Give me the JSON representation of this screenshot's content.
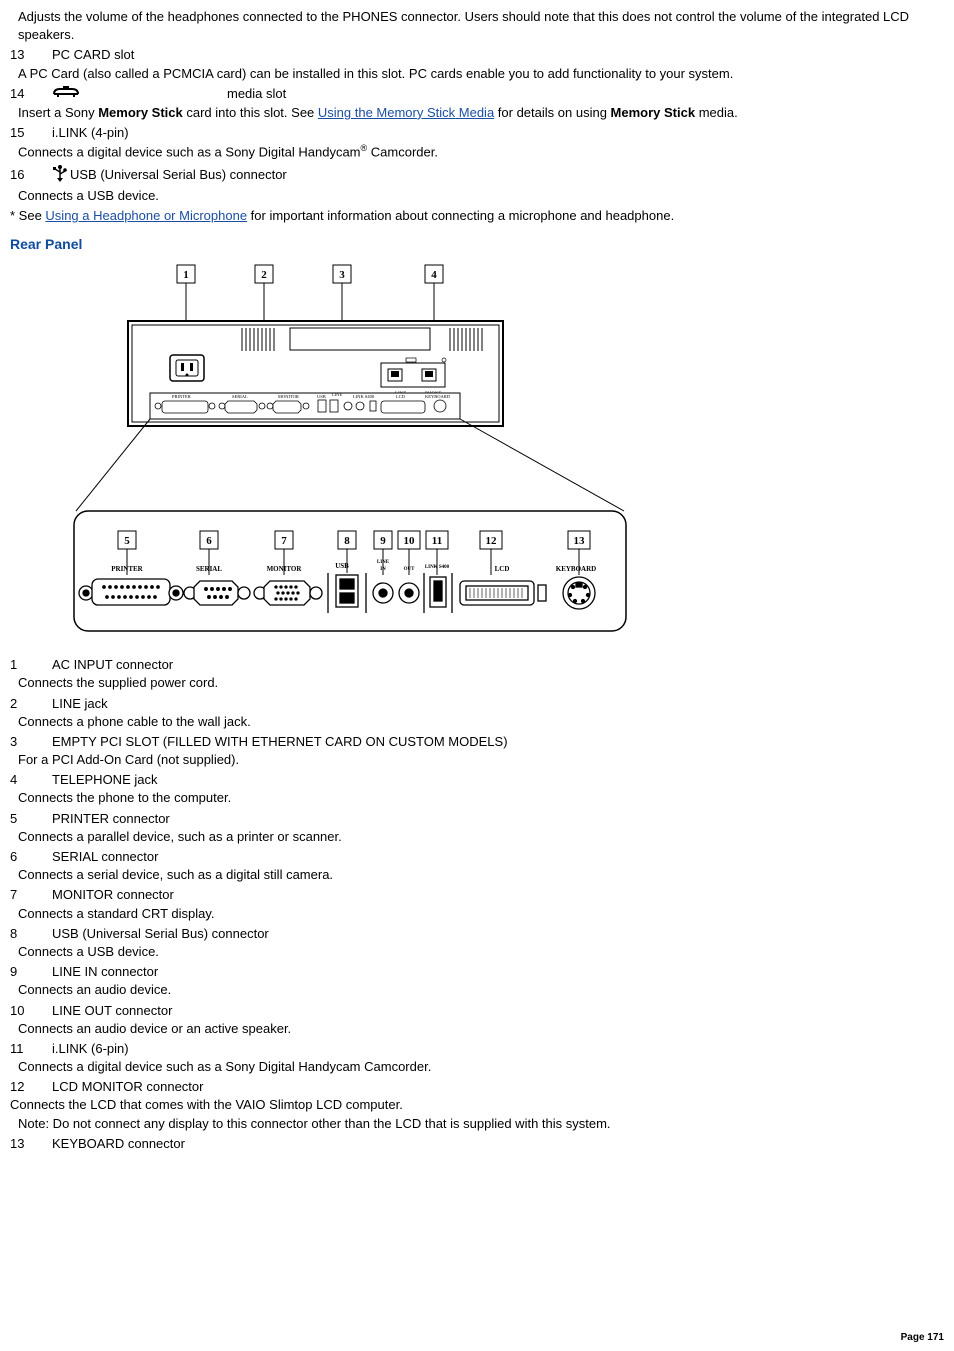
{
  "top_continuation": {
    "desc": "Adjusts the volume of the headphones connected to the PHONES connector. Users should note that this does not control the volume of the integrated LCD speakers."
  },
  "front_items": [
    {
      "num": "13",
      "label": "PC CARD slot",
      "desc": "A PC Card (also called a PCMCIA card) can be installed in this slot. PC cards enable you to add functionality to your system."
    },
    {
      "num": "14",
      "label": "media slot",
      "icon": "memorystick-icon",
      "desc_pre": "Insert a Sony ",
      "desc_bold1": "Memory Stick",
      "desc_mid": "  card into this slot. See ",
      "link1": "Using the Memory Stick",
      "link2": " Media",
      "desc_mid2": " for details on using ",
      "desc_bold2": "Memory Stick",
      "desc_post": " media."
    },
    {
      "num": "15",
      "label": "i.LINK (4-pin)",
      "desc_pre": "Connects a digital device such as a Sony Digital Handycam",
      "desc_sup": "®",
      "desc_post": " Camcorder."
    },
    {
      "num": "16",
      "label": "USB (Universal Serial Bus) connector",
      "icon": "usb-trident-icon",
      "desc": "Connects a USB device."
    }
  ],
  "footnote": {
    "pre": "* See ",
    "link": "Using a Headphone or Microphone",
    "post": " for important information about connecting a microphone and headphone."
  },
  "heading_rear": "Rear Panel",
  "rear_items": [
    {
      "num": "1",
      "label": "AC INPUT connector",
      "desc": "Connects the supplied power cord."
    },
    {
      "num": "2",
      "label": "LINE jack",
      "desc": "Connects a phone cable to the wall jack."
    },
    {
      "num": "3",
      "label": "EMPTY PCI SLOT (FILLED WITH ETHERNET CARD ON CUSTOM MODELS)",
      "desc": "For a PCI Add-On Card (not supplied)."
    },
    {
      "num": "4",
      "label": "TELEPHONE jack",
      "desc": "Connects the phone to the computer."
    },
    {
      "num": "5",
      "label": "PRINTER connector",
      "desc": "Connects a parallel device, such as a printer or scanner."
    },
    {
      "num": "6",
      "label": "SERIAL connector",
      "desc": "Connects a serial device, such as a digital still camera."
    },
    {
      "num": "7",
      "label": "MONITOR connector",
      "desc": "Connects a standard CRT display."
    },
    {
      "num": "8",
      "label": "USB (Universal Serial Bus) connector",
      "desc": "Connects a USB device."
    },
    {
      "num": "9",
      "label": "LINE IN connector",
      "desc": "Connects an audio device."
    },
    {
      "num": "10",
      "label": "LINE OUT connector",
      "desc": "Connects an audio device or an active speaker."
    },
    {
      "num": "11",
      "label": "i.LINK (6-pin)",
      "desc": "Connects a digital device such as a Sony Digital Handycam   Camcorder."
    },
    {
      "num": "12",
      "label": "LCD MONITOR connector",
      "desc": "Connects the LCD that comes with the VAIO Slimtop LCD computer.",
      "note": "Note: Do not connect any display to this connector other than the LCD that is supplied with this system."
    },
    {
      "num": "13",
      "label": "KEYBOARD connector"
    }
  ],
  "diagram": {
    "top_callouts": [
      "1",
      "2",
      "3",
      "4"
    ],
    "bottom_callouts": [
      "5",
      "6",
      "7",
      "8",
      "9",
      "10",
      "11",
      "12",
      "13"
    ],
    "port_labels_top": [
      "PRINTER",
      "SERIAL",
      "MONITOR",
      "USB",
      "LINE IN",
      "LINE OUT",
      "LINK S400",
      "LCD",
      "KEYBOARD"
    ],
    "port_labels_bottom": [
      "PRINTER",
      "SERIAL",
      "MONITOR",
      "USB",
      "LINE IN",
      "OUT",
      "LINK S400",
      "LCD",
      "KEYBOARD"
    ],
    "modem_labels": [
      "LINE",
      "PHONE"
    ]
  },
  "page_number": "Page 171"
}
